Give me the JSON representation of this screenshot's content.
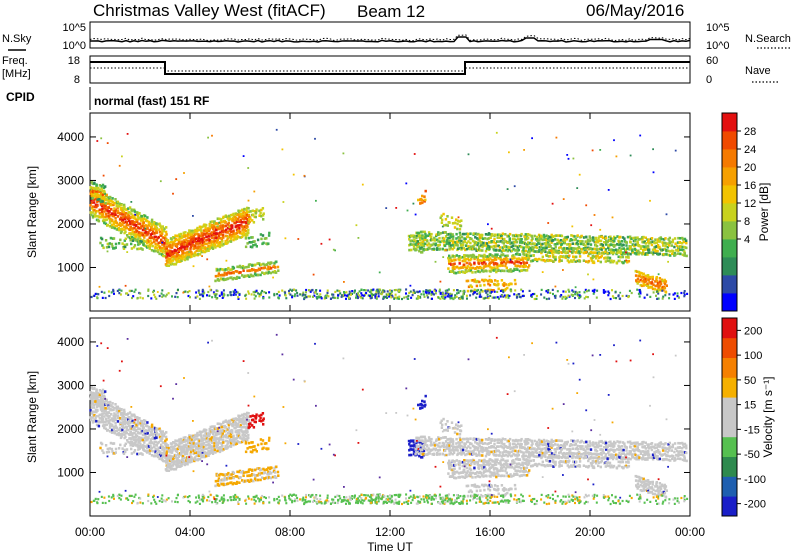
{
  "header": {
    "site": "Christmas Valley West (fitACF)",
    "beam": "Beam 12",
    "date": "06/May/2016"
  },
  "noise_panel": {
    "left_label": "N.Sky",
    "right_label": "N.Search",
    "left_ticks": [
      "10^5",
      "10^0"
    ],
    "right_ticks": [
      "10^5",
      "10^0"
    ]
  },
  "freq_panel": {
    "left_label": "Freq.",
    "left_unit": "[MHz]",
    "left_ticks": [
      "18",
      "8"
    ],
    "right_label": "Nave",
    "right_ticks": [
      "60",
      "0"
    ]
  },
  "cpid_panel": {
    "label": "CPID",
    "text": "normal (fast) 151 RF"
  },
  "power_panel": {
    "ylabel": "Slant Range [km]",
    "ytick_labels": [
      "4000",
      "3000",
      "2000",
      "1000"
    ],
    "colorbar_label": "Power [dB]",
    "colorbar_ticks": [
      "28",
      "24",
      "20",
      "16",
      "12",
      "8",
      "4"
    ],
    "colors": [
      "#0000ff",
      "#2d4aa6",
      "#2e8c57",
      "#3fae4f",
      "#8ac240",
      "#c8d21e",
      "#f2c300",
      "#f6a000",
      "#f57a00",
      "#f04a00",
      "#e31010"
    ]
  },
  "velocity_panel": {
    "ylabel": "Slant Range [km]",
    "ytick_labels": [
      "4000",
      "3000",
      "2000",
      "1000"
    ],
    "colorbar_label": "Velocity [m s⁻¹]",
    "colorbar_ticks": [
      "200",
      "100",
      "50",
      "15",
      "-15",
      "-50",
      "-100",
      "-200"
    ],
    "colors": [
      "#1a1fc8",
      "#1e5fb0",
      "#2e8a4e",
      "#56c050",
      "#c8c8c8",
      "#c8c8c8",
      "#f5b000",
      "#f58000",
      "#ee4c00",
      "#e01010"
    ]
  },
  "x_axis": {
    "label": "Time UT",
    "tick_labels": [
      "00:00",
      "04:00",
      "08:00",
      "12:00",
      "16:00",
      "20:00",
      "00:00"
    ]
  }
}
